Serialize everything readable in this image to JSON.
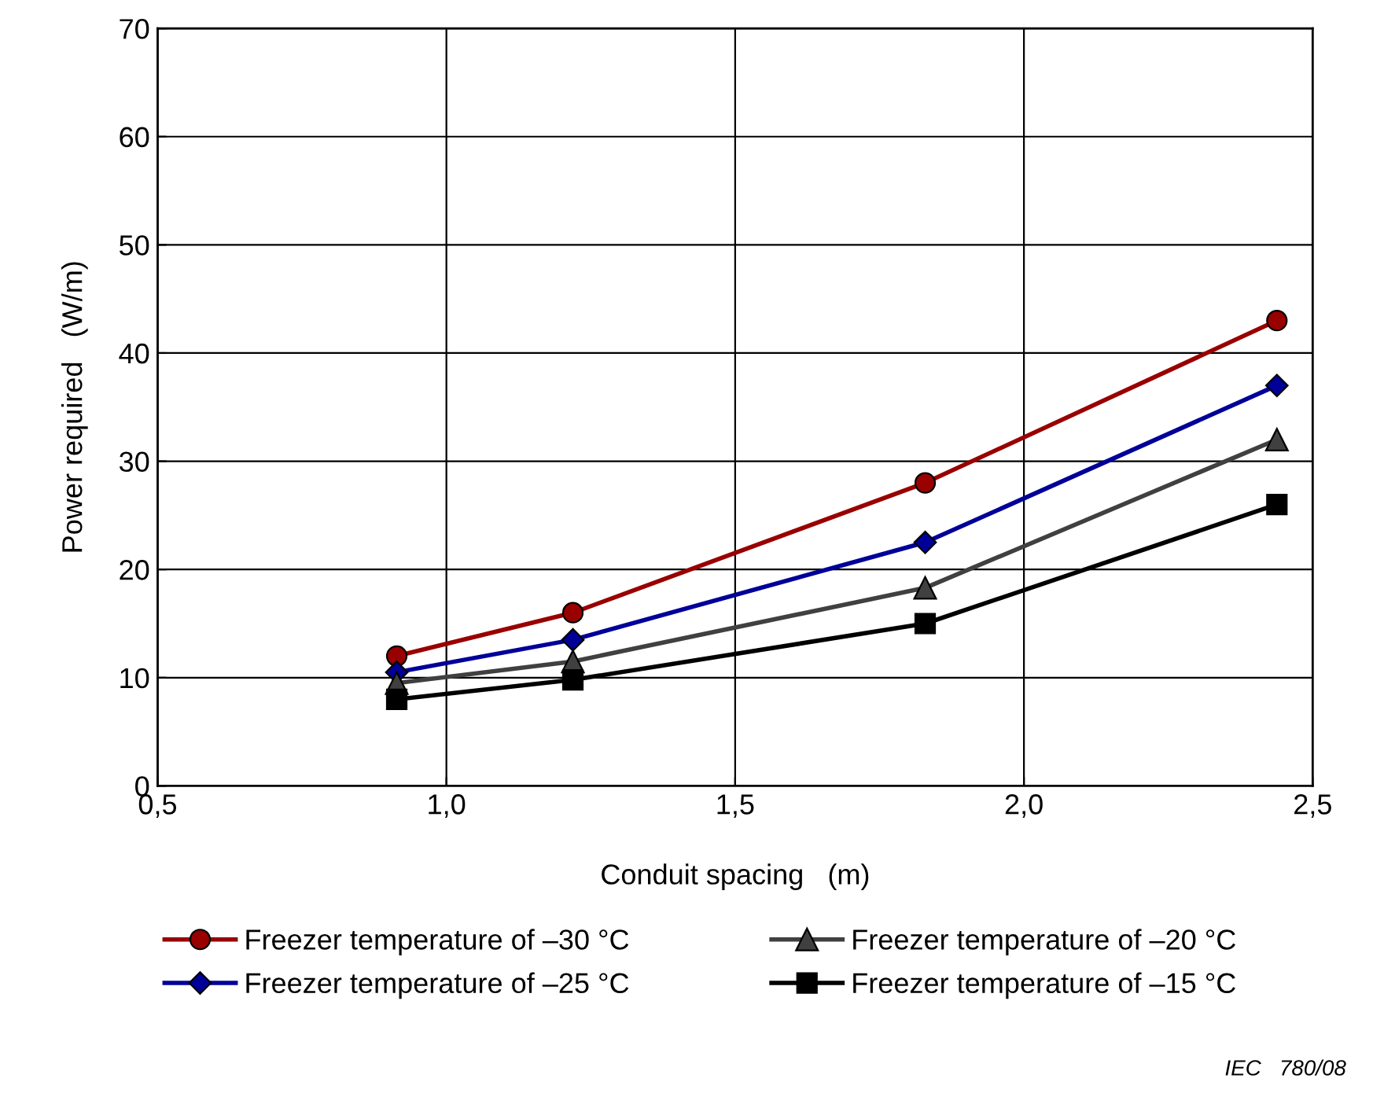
{
  "chart_data": {
    "type": "line",
    "xlabel": "Conduit spacing   (m)",
    "ylabel": "Power required   (W/m)",
    "x": [
      0.914,
      1.219,
      1.829,
      2.438
    ],
    "series": [
      {
        "name": "Freezer temperature of –30 °C",
        "color": "#990000",
        "marker": "circle",
        "values": [
          12,
          16,
          28,
          43
        ]
      },
      {
        "name": "Freezer temperature of –25 °C",
        "color": "#000099",
        "marker": "diamond",
        "values": [
          10.5,
          13.5,
          22.5,
          37
        ]
      },
      {
        "name": "Freezer temperature of –20 °C",
        "color": "#404040",
        "marker": "triangle",
        "values": [
          9.5,
          11.5,
          18.3,
          32
        ]
      },
      {
        "name": "Freezer temperature of –15 °C",
        "color": "#000000",
        "marker": "square",
        "values": [
          8,
          9.8,
          15,
          26
        ]
      }
    ],
    "xlim": [
      0.5,
      2.5
    ],
    "xticks": [
      {
        "value": 0.5,
        "label": "0,5"
      },
      {
        "value": 1.0,
        "label": "1,0"
      },
      {
        "value": 1.5,
        "label": "1,5"
      },
      {
        "value": 2.0,
        "label": "2,0"
      },
      {
        "value": 2.5,
        "label": "2,5"
      }
    ],
    "ylim": [
      0,
      70
    ],
    "yticks": [
      0,
      10,
      20,
      30,
      40,
      50,
      60,
      70
    ],
    "grid": true,
    "legend": "bottom",
    "line_style": "solid",
    "annotations": [
      "IEC   780/08"
    ]
  }
}
